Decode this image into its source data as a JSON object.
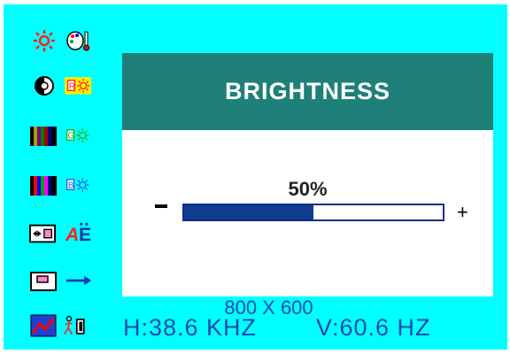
{
  "osd": {
    "title": "BRIGHTNESS",
    "value_label": "50%",
    "value": 0.5,
    "minus_label": "−",
    "plus_label": "+",
    "resolution": "800 X 600",
    "h_frequency": "H:38.6 KHZ",
    "v_frequency": "V:60.6 HZ"
  },
  "menu_icons": [
    "brightness-icon",
    "color-palette-icon",
    "contrast-icon",
    "r-brightness-icon",
    "color-bars-icon",
    "g-brightness-icon",
    "color-bars-2-icon",
    "b-brightness-icon",
    "h-size-icon",
    "language-icon",
    "v-position-icon",
    "arrow-icon",
    "degauss-icon",
    "power-save-icon"
  ],
  "colors": {
    "background": "#00ffff",
    "header": "#1e8078",
    "bar_fill": "#0f3c8e",
    "text_blue": "#1a4ab0"
  }
}
